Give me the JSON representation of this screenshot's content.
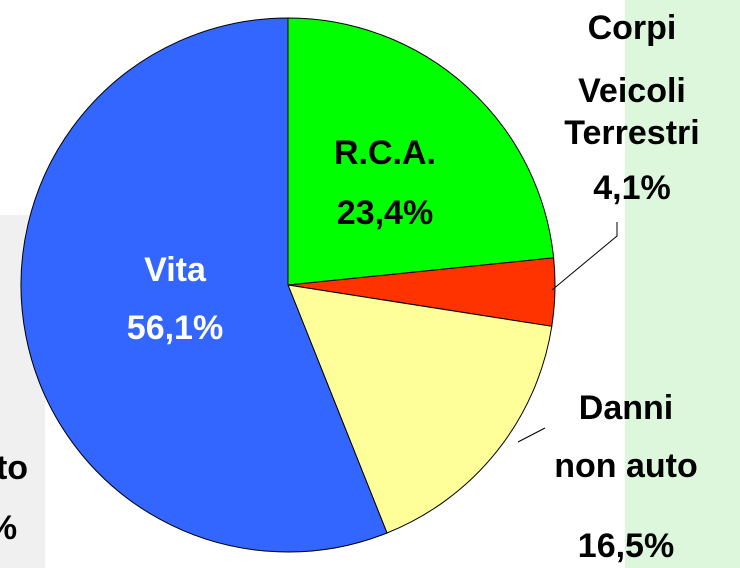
{
  "chart_data": {
    "type": "pie",
    "categories": [
      [
        "R.C.A."
      ],
      [
        "Corpi",
        "Veicoli",
        "Terrestri"
      ],
      [
        "Danni",
        "non auto"
      ],
      [
        "Vita"
      ]
    ],
    "values": [
      23.4,
      4.1,
      16.5,
      56.1
    ],
    "value_labels": [
      "23,4%",
      "4,1%",
      "16,5%",
      "56,1%"
    ],
    "colors": [
      "#00ff00",
      "#ff3300",
      "#ffff99",
      "#3366ff"
    ]
  },
  "background_text": [
    "to",
    "%"
  ]
}
